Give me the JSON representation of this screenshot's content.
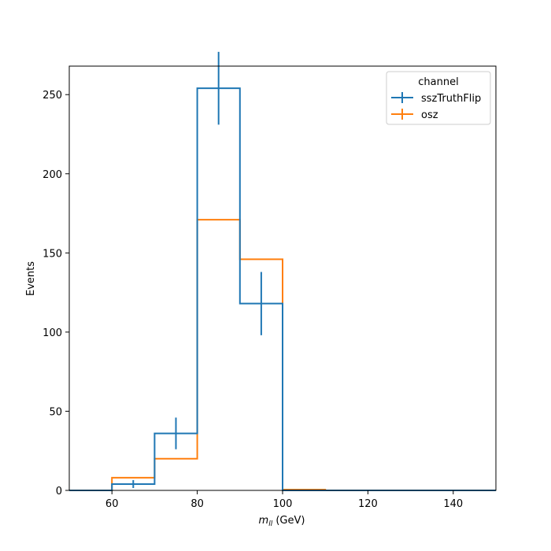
{
  "chart_data": {
    "type": "histogram",
    "xlabel": "m_ll (GeV)",
    "xlabel_main": "m",
    "xlabel_sub": "ll",
    "xlabel_unit": " (GeV)",
    "ylabel": "Events",
    "xlim": [
      50,
      150
    ],
    "ylim": [
      0,
      268
    ],
    "xticks": [
      60,
      80,
      100,
      120,
      140
    ],
    "yticks": [
      0,
      50,
      100,
      150,
      200,
      250
    ],
    "grid": false,
    "legend": {
      "title": "channel",
      "placement": "top-right"
    },
    "bin_edges": [
      50,
      60,
      70,
      80,
      90,
      100,
      110,
      120,
      130,
      140,
      150
    ],
    "series": [
      {
        "name": "sszTruthFlip",
        "color": "#1f77b4",
        "values": [
          0,
          4,
          36,
          254,
          118,
          0,
          0,
          0,
          0,
          0
        ],
        "errors": [
          0,
          2.5,
          10,
          23,
          20,
          0,
          0,
          0,
          0,
          0
        ]
      },
      {
        "name": "osz",
        "color": "#ff7f0e",
        "values": [
          0,
          8,
          20,
          171,
          146,
          0.5,
          0,
          0,
          0,
          0
        ],
        "errors": [
          0,
          0,
          0,
          0,
          0,
          0,
          0,
          0,
          0,
          0
        ]
      }
    ]
  }
}
